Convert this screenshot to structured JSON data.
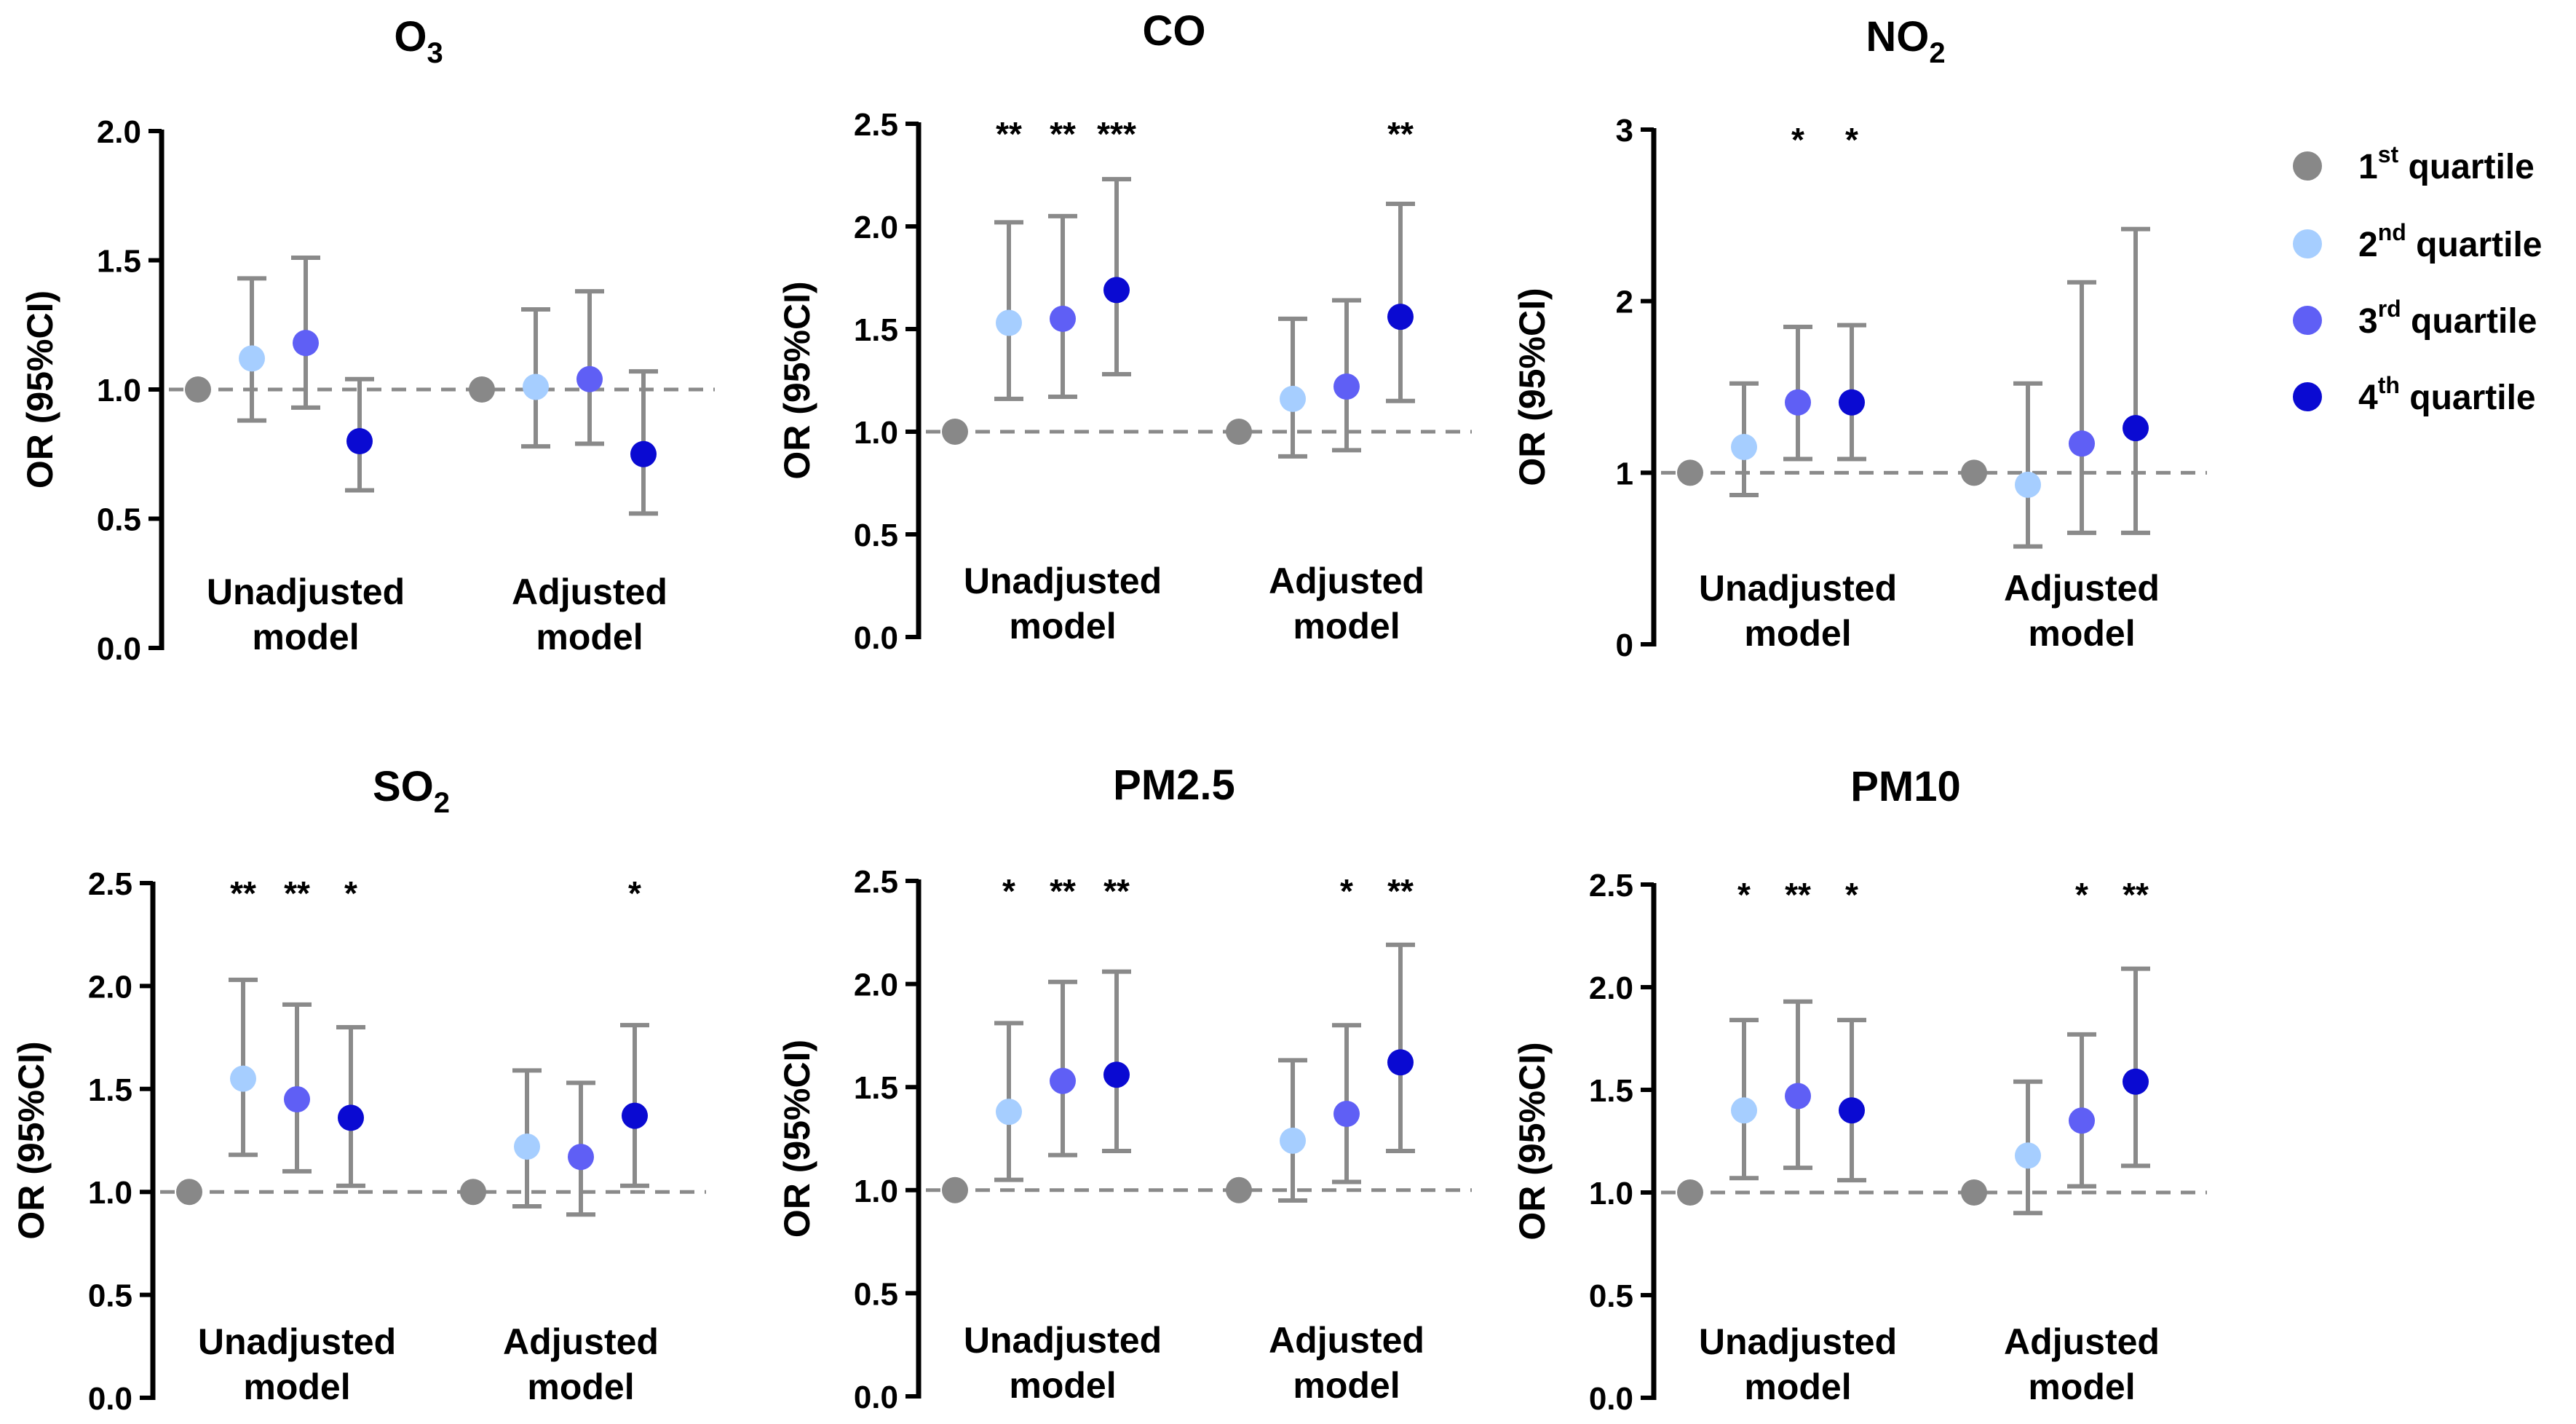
{
  "colors": {
    "q1": "#888888",
    "q2": "#a6ceff",
    "q3": "#5f5ff5",
    "q4": "#0a0ad2",
    "errorbar": "#8a8a8a",
    "reference_line": "#8a8a8a",
    "axis": "#000000"
  },
  "legend": {
    "items": [
      {
        "key": "q1",
        "ordinal": "1",
        "sup": "st",
        "rest": " quartile"
      },
      {
        "key": "q2",
        "ordinal": "2",
        "sup": "nd",
        "rest": " quartile"
      },
      {
        "key": "q3",
        "ordinal": "3",
        "sup": "rd",
        "rest": " quartile"
      },
      {
        "key": "q4",
        "ordinal": "4",
        "sup": "th",
        "rest": " quartile"
      }
    ],
    "position": "right"
  },
  "chart_data": [
    {
      "type": "scatter",
      "title": "O",
      "title_sub": "3",
      "ylabel": "OR (95%CI)",
      "ylim": [
        0,
        2
      ],
      "yticks": [
        "0.0",
        "0.5",
        "1.0",
        "1.5",
        "2.0"
      ],
      "reference": 1,
      "groups": [
        {
          "label_lines": [
            "Unadjusted",
            "model"
          ],
          "points": [
            {
              "q": "q1",
              "or": 1.0,
              "lo": null,
              "hi": null,
              "sig": ""
            },
            {
              "q": "q2",
              "or": 1.12,
              "lo": 0.88,
              "hi": 1.43,
              "sig": ""
            },
            {
              "q": "q3",
              "or": 1.18,
              "lo": 0.93,
              "hi": 1.51,
              "sig": ""
            },
            {
              "q": "q4",
              "or": 0.8,
              "lo": 0.61,
              "hi": 1.04,
              "sig": ""
            }
          ]
        },
        {
          "label_lines": [
            "Adjusted",
            "model"
          ],
          "points": [
            {
              "q": "q1",
              "or": 1.0,
              "lo": null,
              "hi": null,
              "sig": ""
            },
            {
              "q": "q2",
              "or": 1.01,
              "lo": 0.78,
              "hi": 1.31,
              "sig": ""
            },
            {
              "q": "q3",
              "or": 1.04,
              "lo": 0.79,
              "hi": 1.38,
              "sig": ""
            },
            {
              "q": "q4",
              "or": 0.75,
              "lo": 0.52,
              "hi": 1.07,
              "sig": ""
            }
          ]
        }
      ]
    },
    {
      "type": "scatter",
      "title": "CO",
      "title_sub": "",
      "ylabel": "OR (95%CI)",
      "ylim": [
        0,
        2.5
      ],
      "yticks": [
        "0.0",
        "0.5",
        "1.0",
        "1.5",
        "2.0",
        "2.5"
      ],
      "reference": 1,
      "groups": [
        {
          "label_lines": [
            "Unadjusted",
            "model"
          ],
          "points": [
            {
              "q": "q1",
              "or": 1.0,
              "lo": null,
              "hi": null,
              "sig": ""
            },
            {
              "q": "q2",
              "or": 1.53,
              "lo": 1.16,
              "hi": 2.02,
              "sig": "**"
            },
            {
              "q": "q3",
              "or": 1.55,
              "lo": 1.17,
              "hi": 2.05,
              "sig": "**"
            },
            {
              "q": "q4",
              "or": 1.69,
              "lo": 1.28,
              "hi": 2.23,
              "sig": "***"
            }
          ]
        },
        {
          "label_lines": [
            "Adjusted",
            "model"
          ],
          "points": [
            {
              "q": "q1",
              "or": 1.0,
              "lo": null,
              "hi": null,
              "sig": ""
            },
            {
              "q": "q2",
              "or": 1.16,
              "lo": 0.88,
              "hi": 1.55,
              "sig": ""
            },
            {
              "q": "q3",
              "or": 1.22,
              "lo": 0.91,
              "hi": 1.64,
              "sig": ""
            },
            {
              "q": "q4",
              "or": 1.56,
              "lo": 1.15,
              "hi": 2.11,
              "sig": "**"
            }
          ]
        }
      ]
    },
    {
      "type": "scatter",
      "title": "NO",
      "title_sub": "2",
      "ylabel": "OR (95%CI)",
      "ylim": [
        0,
        3
      ],
      "yticks": [
        "0",
        "1",
        "2",
        "3"
      ],
      "reference": 1,
      "groups": [
        {
          "label_lines": [
            "Unadjusted",
            "model"
          ],
          "points": [
            {
              "q": "q1",
              "or": 1.0,
              "lo": null,
              "hi": null,
              "sig": ""
            },
            {
              "q": "q2",
              "or": 1.15,
              "lo": 0.87,
              "hi": 1.52,
              "sig": ""
            },
            {
              "q": "q3",
              "or": 1.41,
              "lo": 1.08,
              "hi": 1.85,
              "sig": "*"
            },
            {
              "q": "q4",
              "or": 1.41,
              "lo": 1.08,
              "hi": 1.86,
              "sig": "*"
            }
          ]
        },
        {
          "label_lines": [
            "Adjusted",
            "model"
          ],
          "points": [
            {
              "q": "q1",
              "or": 1.0,
              "lo": null,
              "hi": null,
              "sig": ""
            },
            {
              "q": "q2",
              "or": 0.93,
              "lo": 0.57,
              "hi": 1.52,
              "sig": ""
            },
            {
              "q": "q3",
              "or": 1.17,
              "lo": 0.65,
              "hi": 2.11,
              "sig": ""
            },
            {
              "q": "q4",
              "or": 1.26,
              "lo": 0.65,
              "hi": 2.42,
              "sig": ""
            }
          ]
        }
      ]
    },
    {
      "type": "scatter",
      "title": "SO",
      "title_sub": "2",
      "ylabel": "OR (95%CI)",
      "ylim": [
        0,
        2.5
      ],
      "yticks": [
        "0.0",
        "0.5",
        "1.0",
        "1.5",
        "2.0",
        "2.5"
      ],
      "reference": 1,
      "groups": [
        {
          "label_lines": [
            "Unadjusted",
            "model"
          ],
          "points": [
            {
              "q": "q1",
              "or": 1.0,
              "lo": null,
              "hi": null,
              "sig": ""
            },
            {
              "q": "q2",
              "or": 1.55,
              "lo": 1.18,
              "hi": 2.03,
              "sig": "**"
            },
            {
              "q": "q3",
              "or": 1.45,
              "lo": 1.1,
              "hi": 1.91,
              "sig": "**"
            },
            {
              "q": "q4",
              "or": 1.36,
              "lo": 1.03,
              "hi": 1.8,
              "sig": "*"
            }
          ]
        },
        {
          "label_lines": [
            "Adjusted",
            "model"
          ],
          "points": [
            {
              "q": "q1",
              "or": 1.0,
              "lo": null,
              "hi": null,
              "sig": ""
            },
            {
              "q": "q2",
              "or": 1.22,
              "lo": 0.93,
              "hi": 1.59,
              "sig": ""
            },
            {
              "q": "q3",
              "or": 1.17,
              "lo": 0.89,
              "hi": 1.53,
              "sig": ""
            },
            {
              "q": "q4",
              "or": 1.37,
              "lo": 1.03,
              "hi": 1.81,
              "sig": "*"
            }
          ]
        }
      ]
    },
    {
      "type": "scatter",
      "title": "PM2.5",
      "title_sub": "",
      "ylabel": "OR (95%CI)",
      "ylim": [
        0,
        2.5
      ],
      "yticks": [
        "0.0",
        "0.5",
        "1.0",
        "1.5",
        "2.0",
        "2.5"
      ],
      "reference": 1,
      "groups": [
        {
          "label_lines": [
            "Unadjusted",
            "model"
          ],
          "points": [
            {
              "q": "q1",
              "or": 1.0,
              "lo": null,
              "hi": null,
              "sig": ""
            },
            {
              "q": "q2",
              "or": 1.38,
              "lo": 1.05,
              "hi": 1.81,
              "sig": "*"
            },
            {
              "q": "q3",
              "or": 1.53,
              "lo": 1.17,
              "hi": 2.01,
              "sig": "**"
            },
            {
              "q": "q4",
              "or": 1.56,
              "lo": 1.19,
              "hi": 2.06,
              "sig": "**"
            }
          ]
        },
        {
          "label_lines": [
            "Adjusted",
            "model"
          ],
          "points": [
            {
              "q": "q1",
              "or": 1.0,
              "lo": null,
              "hi": null,
              "sig": ""
            },
            {
              "q": "q2",
              "or": 1.24,
              "lo": 0.95,
              "hi": 1.63,
              "sig": ""
            },
            {
              "q": "q3",
              "or": 1.37,
              "lo": 1.04,
              "hi": 1.8,
              "sig": "*"
            },
            {
              "q": "q4",
              "or": 1.62,
              "lo": 1.19,
              "hi": 2.19,
              "sig": "**"
            }
          ]
        }
      ]
    },
    {
      "type": "scatter",
      "title": "PM10",
      "title_sub": "",
      "ylabel": "OR (95%CI)",
      "ylim": [
        0,
        2.5
      ],
      "yticks": [
        "0.0",
        "0.5",
        "1.0",
        "1.5",
        "2.0",
        "2.5"
      ],
      "reference": 1,
      "groups": [
        {
          "label_lines": [
            "Unadjusted",
            "model"
          ],
          "points": [
            {
              "q": "q1",
              "or": 1.0,
              "lo": null,
              "hi": null,
              "sig": ""
            },
            {
              "q": "q2",
              "or": 1.4,
              "lo": 1.07,
              "hi": 1.84,
              "sig": "*"
            },
            {
              "q": "q3",
              "or": 1.47,
              "lo": 1.12,
              "hi": 1.93,
              "sig": "**"
            },
            {
              "q": "q4",
              "or": 1.4,
              "lo": 1.06,
              "hi": 1.84,
              "sig": "*"
            }
          ]
        },
        {
          "label_lines": [
            "Adjusted",
            "model"
          ],
          "points": [
            {
              "q": "q1",
              "or": 1.0,
              "lo": null,
              "hi": null,
              "sig": ""
            },
            {
              "q": "q2",
              "or": 1.18,
              "lo": 0.9,
              "hi": 1.54,
              "sig": ""
            },
            {
              "q": "q3",
              "or": 1.35,
              "lo": 1.03,
              "hi": 1.77,
              "sig": "*"
            },
            {
              "q": "q4",
              "or": 1.54,
              "lo": 1.13,
              "hi": 2.09,
              "sig": "**"
            }
          ]
        }
      ]
    }
  ]
}
